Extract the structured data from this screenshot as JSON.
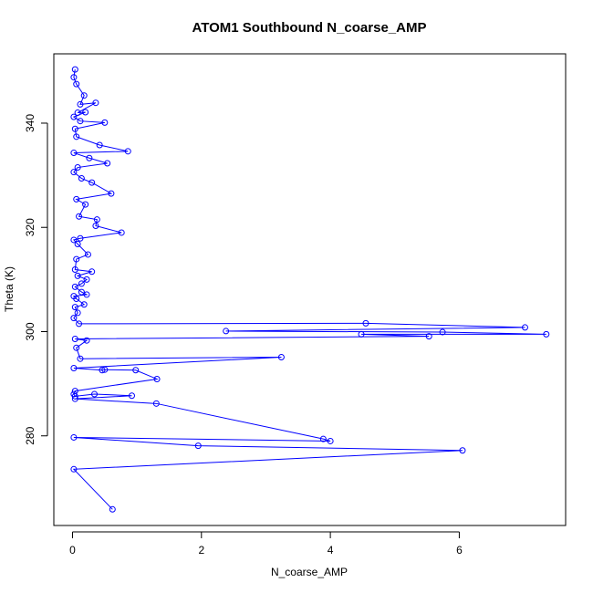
{
  "chart_data": {
    "type": "line",
    "title": "ATOM1 Southbound N_coarse_AMP",
    "xlabel": "N_coarse_AMP",
    "ylabel": "Theta (K)",
    "xlim": [
      -0.29,
      7.65
    ],
    "ylim": [
      262.8,
      353.3
    ],
    "xticks": [
      0,
      2,
      4,
      6
    ],
    "yticks": [
      280,
      300,
      320,
      340
    ],
    "grid": false,
    "legend": "none",
    "series": [
      {
        "color": "#0000ff",
        "marker": "open-circle",
        "line": true,
        "points": [
          [
            0.04,
            350.3
          ],
          [
            0.02,
            348.8
          ],
          [
            0.06,
            347.5
          ],
          [
            0.18,
            345.3
          ],
          [
            0.12,
            343.6
          ],
          [
            0.36,
            343.9
          ],
          [
            0.08,
            342.0
          ],
          [
            0.2,
            342.1
          ],
          [
            0.02,
            341.2
          ],
          [
            0.12,
            340.4
          ],
          [
            0.5,
            340.1
          ],
          [
            0.04,
            338.9
          ],
          [
            0.06,
            337.4
          ],
          [
            0.42,
            335.8
          ],
          [
            0.86,
            334.6
          ],
          [
            0.02,
            334.3
          ],
          [
            0.26,
            333.3
          ],
          [
            0.54,
            332.3
          ],
          [
            0.08,
            331.5
          ],
          [
            0.02,
            330.6
          ],
          [
            0.14,
            329.4
          ],
          [
            0.3,
            328.6
          ],
          [
            0.6,
            326.5
          ],
          [
            0.06,
            325.4
          ],
          [
            0.2,
            324.4
          ],
          [
            0.1,
            322.1
          ],
          [
            0.38,
            321.5
          ],
          [
            0.36,
            320.3
          ],
          [
            0.76,
            319.0
          ],
          [
            0.12,
            317.9
          ],
          [
            0.02,
            317.6
          ],
          [
            0.08,
            316.8
          ],
          [
            0.24,
            314.8
          ],
          [
            0.06,
            313.9
          ],
          [
            0.04,
            311.9
          ],
          [
            0.3,
            311.5
          ],
          [
            0.08,
            310.7
          ],
          [
            0.22,
            310.0
          ],
          [
            0.14,
            309.2
          ],
          [
            0.04,
            308.6
          ],
          [
            0.14,
            307.6
          ],
          [
            0.22,
            307.1
          ],
          [
            0.02,
            306.8
          ],
          [
            0.06,
            306.3
          ],
          [
            0.18,
            305.2
          ],
          [
            0.04,
            304.7
          ],
          [
            0.08,
            303.6
          ],
          [
            0.02,
            302.6
          ],
          [
            0.1,
            301.5
          ],
          [
            4.55,
            301.6
          ],
          [
            7.02,
            300.8
          ],
          [
            2.38,
            300.1
          ],
          [
            5.74,
            299.9
          ],
          [
            7.35,
            299.5
          ],
          [
            4.48,
            299.5
          ],
          [
            5.53,
            299.1
          ],
          [
            0.04,
            298.6
          ],
          [
            0.22,
            298.3
          ],
          [
            0.06,
            296.9
          ],
          [
            0.12,
            294.8
          ],
          [
            3.24,
            295.1
          ],
          [
            0.02,
            293.0
          ],
          [
            0.46,
            292.6
          ],
          [
            0.5,
            292.7
          ],
          [
            0.98,
            292.6
          ],
          [
            1.31,
            290.9
          ],
          [
            0.04,
            288.6
          ],
          [
            0.02,
            288.0
          ],
          [
            0.04,
            287.6
          ],
          [
            0.34,
            288.0
          ],
          [
            0.92,
            287.7
          ],
          [
            0.04,
            287.1
          ],
          [
            1.3,
            286.2
          ],
          [
            3.89,
            279.4
          ],
          [
            4.0,
            279.0
          ],
          [
            0.02,
            279.7
          ],
          [
            1.95,
            278.1
          ],
          [
            6.05,
            277.2
          ],
          [
            0.02,
            273.6
          ],
          [
            0.62,
            265.9
          ]
        ]
      }
    ]
  }
}
